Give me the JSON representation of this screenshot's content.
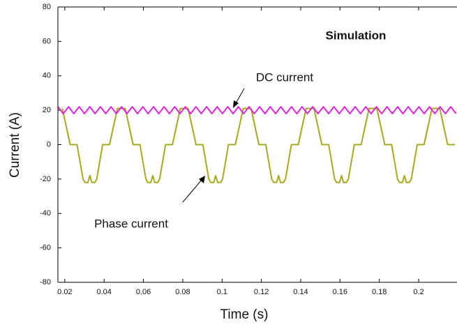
{
  "chart_data": {
    "type": "line",
    "xlabel": "Time (s)",
    "ylabel": "Current (A)",
    "annotations": [
      "Simulation",
      "DC current",
      "Phase current"
    ],
    "xlim": [
      0.0165,
      0.2195
    ],
    "ylim": [
      -80,
      80
    ],
    "xticks": [
      0.02,
      0.04,
      0.06,
      0.08,
      0.1,
      0.12,
      0.14,
      0.16,
      0.18,
      0.2
    ],
    "yticks": [
      -80,
      -60,
      -40,
      -20,
      0,
      20,
      40,
      60,
      80
    ],
    "series": [
      {
        "name": "Phase current",
        "color": "#a8a81e",
        "x": [
          0.01875,
          0.02275,
          0.02625,
          0.02925,
          0.03025,
          0.03175,
          0.03275,
          0.03375,
          0.03525,
          0.03625,
          0.03925,
          0.04275,
          0.04675,
          0.05075,
          0.05475,
          0.05825,
          0.06125,
          0.06225,
          0.06375,
          0.06475,
          0.06575,
          0.06725,
          0.06825,
          0.07125,
          0.07475,
          0.07875,
          0.08275,
          0.08675,
          0.09025,
          0.09325,
          0.09425,
          0.09575,
          0.09675,
          0.09775,
          0.09925,
          0.10025,
          0.10325,
          0.10675,
          0.11075,
          0.11475,
          0.11875,
          0.12225,
          0.12525,
          0.12625,
          0.12775,
          0.12875,
          0.12975,
          0.13125,
          0.13225,
          0.13525,
          0.13875,
          0.14275,
          0.14675,
          0.15075,
          0.15425,
          0.15725,
          0.15825,
          0.15975,
          0.16075,
          0.16175,
          0.16325,
          0.16425,
          0.16725,
          0.17075,
          0.17475,
          0.17875,
          0.18275,
          0.18625,
          0.18925,
          0.19025,
          0.19175,
          0.19275,
          0.19375,
          0.19525,
          0.19625,
          0.19925,
          0.20275,
          0.20675,
          0.21075,
          0.21475,
          0.2185
        ],
        "values": [
          21,
          0,
          0,
          -20,
          -22,
          -22,
          -18,
          -22,
          -22,
          -20,
          0,
          0,
          21,
          21,
          0,
          0,
          -20,
          -22,
          -22,
          -18,
          -22,
          -22,
          -20,
          0,
          0,
          21,
          21,
          0,
          0,
          -20,
          -22,
          -22,
          -18,
          -22,
          -22,
          -20,
          0,
          0,
          21,
          21,
          0,
          0,
          -20,
          -22,
          -22,
          -18,
          -22,
          -22,
          -20,
          0,
          0,
          21,
          21,
          0,
          0,
          -20,
          -22,
          -22,
          -18,
          -22,
          -22,
          -20,
          0,
          0,
          21,
          21,
          0,
          0,
          -20,
          -22,
          -22,
          -18,
          -22,
          -22,
          -20,
          0,
          0,
          21,
          21,
          0,
          0
        ]
      },
      {
        "name": "DC current",
        "color": "#e020e0",
        "x": [
          0.0165,
          0.0192,
          0.0219,
          0.0246,
          0.0273,
          0.03,
          0.0327,
          0.0354,
          0.0381,
          0.0408,
          0.0435,
          0.0462,
          0.0489,
          0.0516,
          0.0543,
          0.057,
          0.0597,
          0.0624,
          0.0651,
          0.0678,
          0.0705,
          0.0732,
          0.0759,
          0.0786,
          0.0813,
          0.084,
          0.0867,
          0.0894,
          0.0921,
          0.0948,
          0.0975,
          0.1002,
          0.1029,
          0.1056,
          0.1083,
          0.111,
          0.1137,
          0.1164,
          0.1191,
          0.1218,
          0.1245,
          0.1272,
          0.1299,
          0.1326,
          0.1353,
          0.138,
          0.1407,
          0.1434,
          0.1461,
          0.1488,
          0.1515,
          0.1542,
          0.1569,
          0.1596,
          0.1623,
          0.165,
          0.1677,
          0.1704,
          0.1731,
          0.1758,
          0.1785,
          0.1812,
          0.1839,
          0.1866,
          0.1893,
          0.192,
          0.1947,
          0.1974,
          0.2001,
          0.2028,
          0.2055,
          0.2082,
          0.2109,
          0.2136,
          0.2163,
          0.219
        ],
        "values": [
          22,
          18,
          22,
          18,
          22,
          18,
          22,
          18,
          22,
          18,
          22,
          18,
          22,
          18,
          22,
          18,
          22,
          18,
          22,
          18,
          22,
          18,
          22,
          18,
          22,
          18,
          22,
          18,
          22,
          18,
          22,
          18,
          22,
          18,
          22,
          18,
          22,
          18,
          22,
          18,
          22,
          18,
          22,
          18,
          22,
          18,
          22,
          18,
          22,
          18,
          22,
          18,
          22,
          18,
          22,
          18,
          22,
          18,
          22,
          18,
          22,
          18,
          22,
          18,
          22,
          18,
          22,
          18,
          22,
          18,
          22,
          18,
          22,
          18,
          22,
          18
        ]
      }
    ]
  }
}
